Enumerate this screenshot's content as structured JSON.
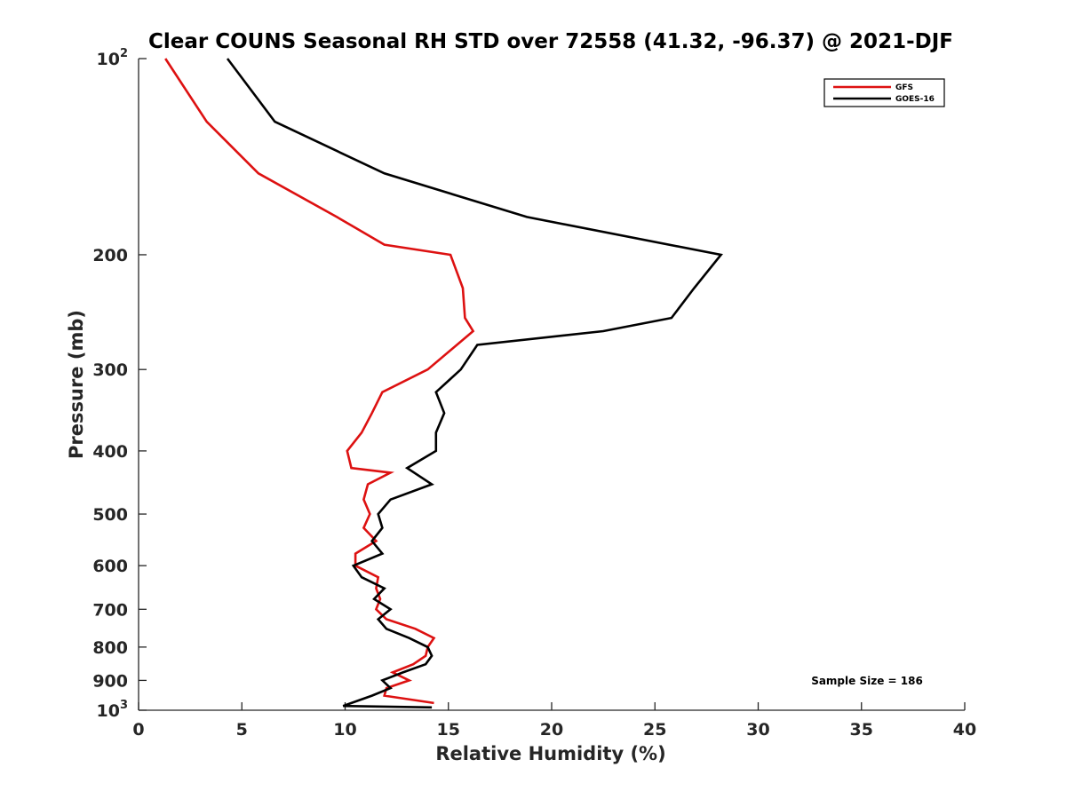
{
  "chart_data": {
    "type": "line",
    "title": "Clear COUNS Seasonal RH STD over 72558 (41.32, -96.37) @ 2021-DJF",
    "xlabel": "Relative Humidity (%)",
    "ylabel": "Pressure (mb)",
    "xlim": [
      0,
      40
    ],
    "ylim": [
      100,
      1000
    ],
    "yscale": "log",
    "y_reversed": true,
    "x_ticks": [
      0,
      5,
      10,
      15,
      20,
      25,
      30,
      35,
      40
    ],
    "x_tick_labels": [
      "0",
      "5",
      "10",
      "15",
      "20",
      "25",
      "30",
      "35",
      "40"
    ],
    "y_ticks": [
      100,
      200,
      300,
      400,
      500,
      600,
      700,
      800,
      900,
      1000
    ],
    "y_tick_labels": [
      {
        "base": "10",
        "exp": "2"
      },
      {
        "base": "200"
      },
      {
        "base": "300"
      },
      {
        "base": "400"
      },
      {
        "base": "500"
      },
      {
        "base": "600"
      },
      {
        "base": "700"
      },
      {
        "base": "800"
      },
      {
        "base": "900"
      },
      {
        "base": "10",
        "exp": "3"
      }
    ],
    "legend_position": "top-right",
    "annotation": "Sample Size = 186",
    "series": [
      {
        "name": "GFS",
        "color": "#dd1111",
        "points": [
          [
            1.3,
            100
          ],
          [
            3.3,
            125
          ],
          [
            5.8,
            150
          ],
          [
            9.6,
            175
          ],
          [
            11.9,
            193
          ],
          [
            15.1,
            200
          ],
          [
            15.7,
            225
          ],
          [
            15.8,
            250
          ],
          [
            16.2,
            262
          ],
          [
            14.0,
            300
          ],
          [
            11.8,
            325
          ],
          [
            11.3,
            350
          ],
          [
            10.8,
            375
          ],
          [
            10.1,
            400
          ],
          [
            10.3,
            425
          ],
          [
            12.2,
            432
          ],
          [
            11.1,
            450
          ],
          [
            10.9,
            475
          ],
          [
            11.2,
            500
          ],
          [
            10.9,
            525
          ],
          [
            11.5,
            550
          ],
          [
            10.5,
            575
          ],
          [
            10.5,
            600
          ],
          [
            11.6,
            625
          ],
          [
            11.5,
            650
          ],
          [
            11.7,
            675
          ],
          [
            11.5,
            700
          ],
          [
            12.0,
            725
          ],
          [
            13.4,
            750
          ],
          [
            14.3,
            775
          ],
          [
            14.0,
            800
          ],
          [
            13.9,
            825
          ],
          [
            13.3,
            850
          ],
          [
            12.3,
            875
          ],
          [
            13.1,
            900
          ],
          [
            12.0,
            925
          ],
          [
            11.9,
            950
          ],
          [
            14.3,
            975
          ]
        ]
      },
      {
        "name": "GOES-16",
        "color": "#000000",
        "points": [
          [
            4.3,
            100
          ],
          [
            6.6,
            125
          ],
          [
            11.9,
            150
          ],
          [
            18.8,
            175
          ],
          [
            28.2,
            200
          ],
          [
            26.9,
            225
          ],
          [
            25.8,
            250
          ],
          [
            22.5,
            262
          ],
          [
            16.4,
            275
          ],
          [
            15.6,
            300
          ],
          [
            14.4,
            325
          ],
          [
            14.8,
            350
          ],
          [
            14.4,
            375
          ],
          [
            14.4,
            400
          ],
          [
            13.0,
            425
          ],
          [
            14.2,
            450
          ],
          [
            12.2,
            475
          ],
          [
            11.6,
            500
          ],
          [
            11.8,
            525
          ],
          [
            11.3,
            550
          ],
          [
            11.8,
            575
          ],
          [
            10.4,
            600
          ],
          [
            10.8,
            625
          ],
          [
            11.9,
            650
          ],
          [
            11.4,
            675
          ],
          [
            12.2,
            700
          ],
          [
            11.6,
            725
          ],
          [
            12.0,
            750
          ],
          [
            13.1,
            775
          ],
          [
            14.0,
            800
          ],
          [
            14.2,
            825
          ],
          [
            13.9,
            850
          ],
          [
            12.8,
            875
          ],
          [
            11.8,
            900
          ],
          [
            12.2,
            925
          ],
          [
            11.3,
            950
          ],
          [
            10.3,
            975
          ],
          [
            9.9,
            985
          ],
          [
            14.2,
            990
          ]
        ]
      }
    ]
  }
}
